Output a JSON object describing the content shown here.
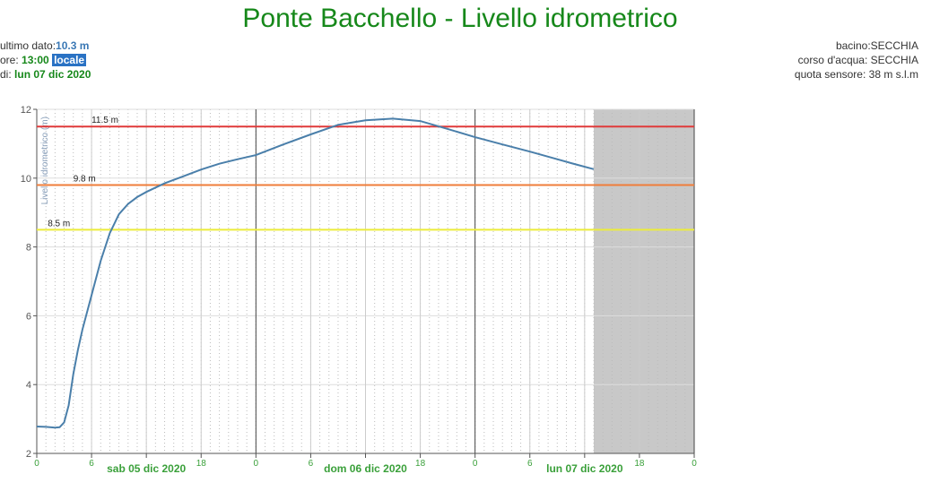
{
  "header": {
    "last_value_label": "ultimo dato:",
    "last_value": "10.3 m",
    "time_label": "ore:",
    "time": "13:00",
    "time_zone": "locale",
    "date_label": "di:",
    "date": "lun 07 dic 2020",
    "basin": "bacino:SECCHIA",
    "river": "corso d'acqua: SECCHIA",
    "sensor_altitude": "quota sensore: 38 m s.l.m"
  },
  "chart_data": {
    "type": "line",
    "title": "Ponte Bacchello - Livello idrometrico",
    "y_label": "Livello idrometrico (m)",
    "x": [
      0,
      1,
      2,
      2.5,
      3,
      3.5,
      4,
      4.5,
      5,
      6,
      7,
      8,
      9,
      10,
      11,
      12,
      14,
      16,
      18,
      20,
      22,
      24,
      27,
      30,
      33,
      36,
      39,
      42,
      45,
      48,
      51,
      54,
      57,
      59,
      61
    ],
    "series": [
      {
        "name": "Livello idrometrico",
        "color": "#4a7faa",
        "values": [
          2.78,
          2.77,
          2.75,
          2.76,
          2.9,
          3.4,
          4.3,
          5.0,
          5.6,
          6.6,
          7.6,
          8.4,
          8.95,
          9.25,
          9.45,
          9.6,
          9.85,
          10.05,
          10.25,
          10.42,
          10.55,
          10.67,
          10.98,
          11.27,
          11.55,
          11.68,
          11.73,
          11.66,
          11.43,
          11.19,
          10.98,
          10.77,
          10.55,
          10.4,
          10.26
        ]
      }
    ],
    "thresholds": [
      {
        "values": [
          11.5
        ],
        "value_labels": [
          "11.5 m"
        ],
        "color": "#e03a3a"
      },
      {
        "values": [
          9.8
        ],
        "value_labels": [
          "9.8 m"
        ],
        "color": "#ef7d3a"
      },
      {
        "values": [
          8.5
        ],
        "value_labels": [
          "8.5 m"
        ],
        "color": "#ecec3a"
      }
    ],
    "shade": [
      61,
      72
    ],
    "xlim": [
      0,
      72
    ],
    "ylim": [
      2,
      12
    ],
    "yticks": [
      2,
      4,
      6,
      8,
      10,
      12
    ],
    "xticks": [
      0,
      6,
      {
        "value": 12,
        "label": "sab 05 dic 2020"
      },
      18,
      {
        "value": 24,
        "label": "0"
      },
      {
        "value": 30,
        "label": "6"
      },
      {
        "value": 36,
        "label": "dom 06 dic 2020"
      },
      {
        "value": 42,
        "label": "18"
      },
      {
        "value": 48,
        "label": "0"
      },
      {
        "value": 54,
        "label": "6"
      },
      {
        "value": 60,
        "label": "lun 07 dic 2020"
      },
      {
        "value": 66,
        "label": "18"
      },
      {
        "value": 72,
        "label": "0"
      }
    ],
    "grid": true
  }
}
